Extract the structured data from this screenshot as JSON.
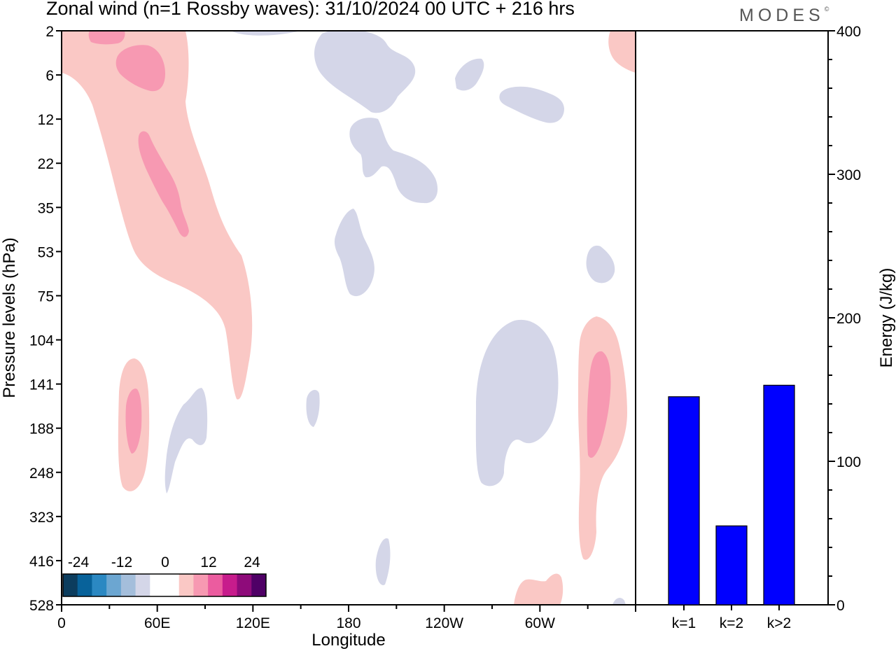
{
  "title": "Zonal wind (n=1 Rossby waves):  31/10/2024  00 UTC  + 216 hrs",
  "logo": "MODES",
  "colors": {
    "bar": "#0000ff",
    "neg_light": "#d4d6e8",
    "pos_light": "#fac8c5",
    "pos_mid": "#f799b2"
  },
  "chart_data": [
    {
      "type": "heatmap",
      "xlabel": "Longitude",
      "ylabel": "Pressure levels (hPa)",
      "x_ticks": [
        "0",
        "60E",
        "120E",
        "180",
        "120W",
        "60W"
      ],
      "x_tick_values": [
        0,
        60,
        120,
        180,
        240,
        300
      ],
      "xlim": [
        0,
        360
      ],
      "y_ticks": [
        "2",
        "6",
        "12",
        "22",
        "35",
        "53",
        "75",
        "104",
        "141",
        "188",
        "248",
        "323",
        "416",
        "528"
      ],
      "colorbar": {
        "tick_labels": [
          "-24",
          "-12",
          "0",
          "12",
          "24"
        ],
        "colors": [
          "#0c3d5e",
          "#08629a",
          "#2b88c2",
          "#6ca6d1",
          "#a4bedb",
          "#d4d6e8",
          "#ffffff",
          "#ffffff",
          "#fac8c5",
          "#f799b2",
          "#eb5c9f",
          "#c71c8c",
          "#8e0b7a",
          "#4f0066"
        ]
      }
    },
    {
      "type": "bar",
      "categories": [
        "k=1",
        "k=2",
        "k>2"
      ],
      "values": [
        145,
        55,
        153
      ],
      "ylabel": "Energy (J/kg)",
      "ylim": [
        0,
        400
      ],
      "y_ticks": [
        "0",
        "100",
        "200",
        "300",
        "400"
      ],
      "y_tick_values": [
        0,
        100,
        200,
        300,
        400
      ]
    }
  ]
}
